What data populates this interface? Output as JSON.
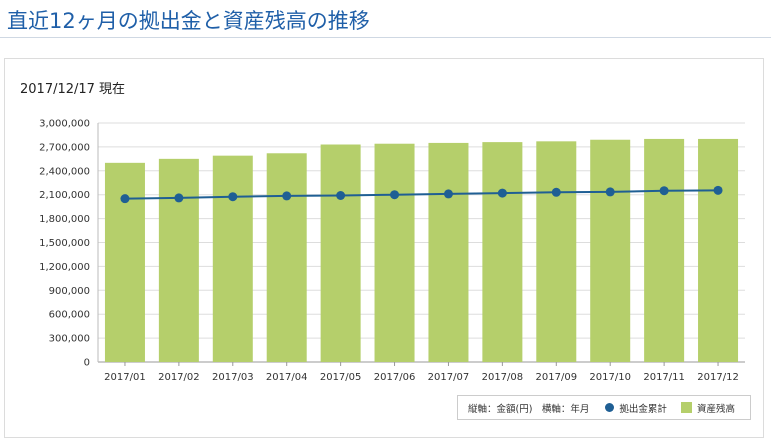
{
  "page": {
    "title": "直近12ヶ月の拠出金と資産残高の推移",
    "as_of": "2017/12/17 現在"
  },
  "legend": {
    "axis_note": "縦軸：金額(円)　横軸：年月",
    "contribution_label": "拠出金累計",
    "balance_label": "資産残高"
  },
  "colors": {
    "bar": "#b5cf6b",
    "line": "#1f5f94",
    "title": "#1f5fa8",
    "grid": "#dddddd"
  },
  "chart_data": {
    "type": "bar",
    "categories": [
      "2017/01",
      "2017/02",
      "2017/03",
      "2017/04",
      "2017/05",
      "2017/06",
      "2017/07",
      "2017/08",
      "2017/09",
      "2017/10",
      "2017/11",
      "2017/12"
    ],
    "series": [
      {
        "name": "資産残高",
        "type": "bar",
        "values": [
          2500000,
          2550000,
          2590000,
          2620000,
          2730000,
          2740000,
          2750000,
          2760000,
          2770000,
          2790000,
          2800000,
          2800000
        ]
      },
      {
        "name": "拠出金累計",
        "type": "line",
        "values": [
          2050000,
          2060000,
          2075000,
          2085000,
          2090000,
          2100000,
          2110000,
          2120000,
          2130000,
          2135000,
          2150000,
          2155000
        ]
      }
    ],
    "yticks": [
      "0",
      "300,000",
      "600,000",
      "900,000",
      "1,200,000",
      "1,500,000",
      "1,800,000",
      "2,100,000",
      "2,400,000",
      "2,700,000",
      "3,000,000"
    ],
    "ylim": [
      0,
      3000000
    ],
    "xlabel": "",
    "ylabel": "",
    "grid": true,
    "legend_position": "bottom-right"
  }
}
